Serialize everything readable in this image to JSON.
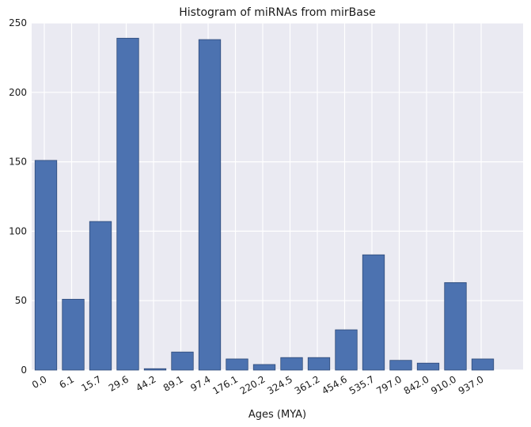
{
  "chart_data": {
    "type": "bar",
    "title": "Histogram of miRNAs from mirBase",
    "xlabel": "Ages (MYA)",
    "ylabel": "",
    "categories": [
      "0.0",
      "6.1",
      "15.7",
      "29.6",
      "44.2",
      "89.1",
      "97.4",
      "176.1",
      "220.2",
      "324.5",
      "361.2",
      "454.6",
      "535.7",
      "797.0",
      "842.0",
      "910.0",
      "937.0"
    ],
    "values": [
      151,
      51,
      107,
      239,
      1,
      13,
      238,
      8,
      4,
      9,
      9,
      29,
      83,
      7,
      5,
      63,
      8
    ],
    "ylim": [
      0,
      250
    ],
    "yticks": [
      0,
      50,
      100,
      150,
      200,
      250
    ],
    "grid": true,
    "colors": {
      "bar": "#4c72b0",
      "bar_edge": "#2e4a78",
      "background": "#eaeaf2",
      "grid": "#ffffff"
    }
  }
}
